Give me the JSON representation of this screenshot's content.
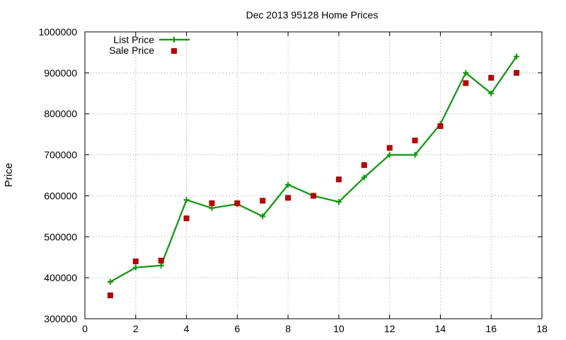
{
  "chart_data": {
    "type": "line",
    "title": "Dec 2013 95128 Home Prices",
    "xlabel": "",
    "ylabel": "Price",
    "xlim": [
      0,
      18
    ],
    "ylim": [
      300000,
      1000000
    ],
    "x_ticks": [
      0,
      2,
      4,
      6,
      8,
      10,
      12,
      14,
      16,
      18
    ],
    "y_ticks": [
      300000,
      400000,
      500000,
      600000,
      700000,
      800000,
      900000,
      1000000
    ],
    "grid": true,
    "legend_position": "top-left",
    "series": [
      {
        "name": "List Price",
        "style": "line+cross",
        "color": "#00a000",
        "x": [
          1,
          2,
          3,
          4,
          5,
          6,
          7,
          8,
          9,
          10,
          11,
          12,
          13,
          14,
          15,
          16,
          17
        ],
        "y": [
          390000,
          425000,
          430000,
          590000,
          570000,
          580000,
          550000,
          627000,
          600000,
          585000,
          645000,
          700000,
          700000,
          775000,
          900000,
          850000,
          940000
        ]
      },
      {
        "name": "Sale Price",
        "style": "square-points",
        "color": "#c00000",
        "x": [
          1,
          2,
          3,
          4,
          5,
          6,
          7,
          8,
          9,
          10,
          11,
          12,
          13,
          14,
          15,
          16,
          17
        ],
        "y": [
          357000,
          440000,
          442000,
          545000,
          582000,
          582000,
          588000,
          595000,
          600000,
          640000,
          675000,
          717000,
          735000,
          770000,
          875000,
          888000,
          900000
        ]
      }
    ]
  }
}
